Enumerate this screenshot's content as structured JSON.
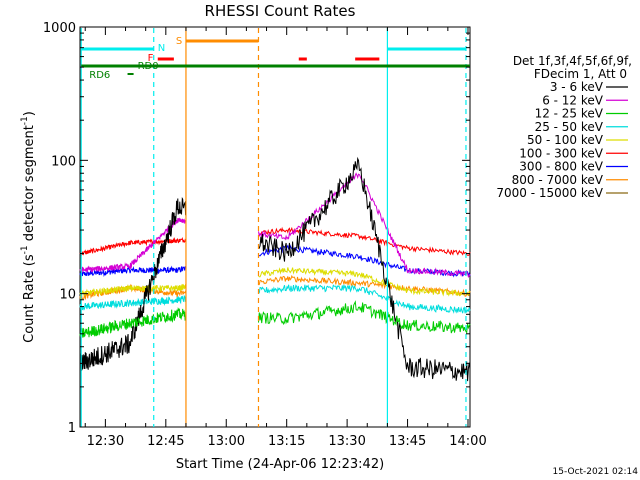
{
  "chart_data": {
    "type": "line",
    "title": "RHESSI Count Rates",
    "xlabel": "Start Time (24-Apr-06 12:23:42)",
    "ylabel": "Count Rate (s",
    "ylabel_sup1": "-1",
    "ylabel_mid": " detector segment",
    "ylabel_sup2": "-1",
    "ylabel_end": ")",
    "y_scale": "log",
    "ylim": [
      1,
      1000
    ],
    "xlim": [
      "12:23:42",
      "14:00:30"
    ],
    "x_ticks": [
      "12:30",
      "12:45",
      "13:00",
      "13:15",
      "13:30",
      "13:45",
      "14:00"
    ],
    "y_ticks": [
      "1",
      "10",
      "100",
      "1000"
    ],
    "footer": "15-Oct-2021 02:14",
    "legend_header": [
      "Det 1f,3f,4f,5f,6f,9f,",
      "FDecim 1, Att 0"
    ],
    "series": [
      {
        "name": "3 - 6 keV",
        "color": "#000000",
        "values": [
          [
            12.4,
            3.0
          ],
          [
            12.6,
            4.2
          ],
          [
            12.8,
            45
          ],
          [
            13.25,
            20
          ],
          [
            13.55,
            90
          ],
          [
            13.75,
            2.8
          ],
          [
            14.0,
            2.6
          ]
        ]
      },
      {
        "name": "6 - 12 keV",
        "color": "#d400d4",
        "values": [
          [
            12.4,
            15
          ],
          [
            12.6,
            16
          ],
          [
            12.8,
            36
          ],
          [
            13.25,
            26
          ],
          [
            13.55,
            80
          ],
          [
            13.75,
            15
          ],
          [
            14.0,
            14
          ]
        ]
      },
      {
        "name": "12 - 25 keV",
        "color": "#00cc00",
        "values": [
          [
            12.4,
            5.0
          ],
          [
            12.6,
            6.0
          ],
          [
            12.8,
            7.0
          ],
          [
            13.25,
            6.5
          ],
          [
            13.55,
            8.0
          ],
          [
            13.75,
            5.8
          ],
          [
            14.0,
            5.5
          ]
        ]
      },
      {
        "name": "25 - 50 keV",
        "color": "#00dddd",
        "values": [
          [
            12.4,
            8.0
          ],
          [
            12.6,
            8.5
          ],
          [
            12.8,
            9.0
          ],
          [
            13.25,
            11
          ],
          [
            13.55,
            11
          ],
          [
            13.75,
            8.0
          ],
          [
            14.0,
            7.5
          ]
        ]
      },
      {
        "name": "50 - 100 keV",
        "color": "#dddd00",
        "values": [
          [
            12.4,
            10
          ],
          [
            12.6,
            11
          ],
          [
            12.8,
            11
          ],
          [
            13.25,
            15
          ],
          [
            13.55,
            14
          ],
          [
            13.75,
            10.5
          ],
          [
            14.0,
            10
          ]
        ]
      },
      {
        "name": "100 - 300 keV",
        "color": "#ff0000",
        "values": [
          [
            12.4,
            20
          ],
          [
            12.6,
            24
          ],
          [
            12.8,
            25
          ],
          [
            13.25,
            30
          ],
          [
            13.55,
            27
          ],
          [
            13.75,
            22
          ],
          [
            14.0,
            20
          ]
        ]
      },
      {
        "name": "300 - 800 keV",
        "color": "#0000ff",
        "values": [
          [
            12.4,
            14
          ],
          [
            12.6,
            15
          ],
          [
            12.8,
            15
          ],
          [
            13.25,
            22
          ],
          [
            13.55,
            19
          ],
          [
            13.75,
            15
          ],
          [
            14.0,
            14
          ]
        ]
      },
      {
        "name": "800 - 7000 keV",
        "color": "#ff8c00",
        "values": [
          [
            12.4,
            9.5
          ],
          [
            12.6,
            11
          ],
          [
            12.8,
            10
          ],
          [
            13.25,
            13
          ],
          [
            13.55,
            12
          ],
          [
            13.75,
            11
          ],
          [
            14.0,
            10
          ]
        ]
      },
      {
        "name": "7000 - 15000 keV",
        "color": "#8b6914",
        "values": []
      }
    ],
    "flags": [
      {
        "label": "N",
        "color": "#00eeee"
      },
      {
        "label": "F",
        "color": "#ff0000"
      },
      {
        "label": "S",
        "color": "#ff8c00"
      },
      {
        "label": "RD6",
        "color": "#008000"
      },
      {
        "label": "RD0",
        "color": "#008000"
      }
    ]
  }
}
